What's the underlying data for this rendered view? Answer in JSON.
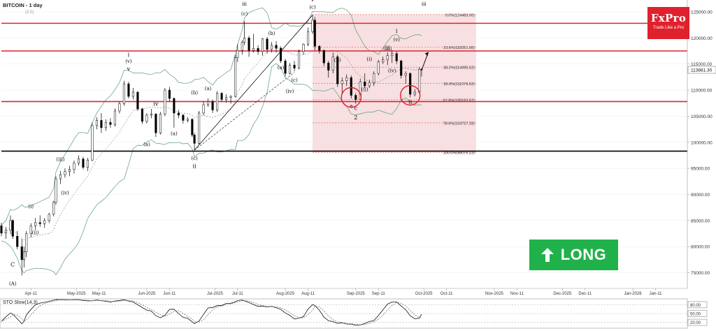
{
  "header": {
    "title": "BITCOIN - 1 day",
    "subtitle": "(2,0)"
  },
  "brand": {
    "name": "FxPro",
    "tagline": "Trade Like a Pro"
  },
  "signal": {
    "label": "LONG",
    "arrow_icon": "arrow-up-icon",
    "color": "#21b14b"
  },
  "colors": {
    "resistance": "#e0212d",
    "support": "#000000",
    "fib_zone": "#f6d4d7",
    "bollinger": "#5a9a78",
    "candle_up": "#ffffff",
    "candle_down": "#000000"
  },
  "chart_data": {
    "type": "candlestick",
    "title": "BITCOIN - 1 day",
    "ylim": [
      72000,
      127000
    ],
    "xlim": [
      "2025-03-29",
      "2026-01-25"
    ],
    "y_ticks": [
      "125000.00",
      "120000.00",
      "115000.00",
      "110000.00",
      "105000.00",
      "100000.00",
      "95000.00",
      "90000.00",
      "85000.00",
      "80000.00",
      "75000.00"
    ],
    "current_price": "113881.30",
    "x_ticks": [
      {
        "label": "Apr-11",
        "date": "2025-04-11"
      },
      {
        "label": "May-2025",
        "date": "2025-05-01"
      },
      {
        "label": "May-11",
        "date": "2025-05-11"
      },
      {
        "label": "Jun-2025",
        "date": "2025-06-01"
      },
      {
        "label": "Jun-11",
        "date": "2025-06-11"
      },
      {
        "label": "Jul-2025",
        "date": "2025-07-01"
      },
      {
        "label": "Jul-11",
        "date": "2025-07-11"
      },
      {
        "label": "Aug-2025",
        "date": "2025-08-01"
      },
      {
        "label": "Aug-11",
        "date": "2025-08-11"
      },
      {
        "label": "Sep-2025",
        "date": "2025-09-01"
      },
      {
        "label": "Sep-11",
        "date": "2025-09-11"
      },
      {
        "label": "Oct-2025",
        "date": "2025-10-01"
      },
      {
        "label": "Oct-11",
        "date": "2025-10-11"
      },
      {
        "label": "Nov-2025",
        "date": "2025-11-01"
      },
      {
        "label": "Nov-11",
        "date": "2025-11-11"
      },
      {
        "label": "Dec-2025",
        "date": "2025-12-01"
      },
      {
        "label": "Dec-11",
        "date": "2025-12-11"
      },
      {
        "label": "Jan-2026",
        "date": "2026-01-01"
      },
      {
        "label": "Jan-11",
        "date": "2026-01-11"
      }
    ],
    "resistance_levels": [
      122800,
      117500,
      107800
    ],
    "support_level": 98300,
    "fibonacci": {
      "start": "2025-08-13",
      "end": "2025-10-24",
      "levels": [
        {
          "label": "0.0%(124483.00)",
          "price": 124483
        },
        {
          "label": "23.6%(118251.00)",
          "price": 118251
        },
        {
          "label": "38.2%(114395.62)",
          "price": 114395.62
        },
        {
          "label": "50.0%(111279.62)",
          "price": 111279.62
        },
        {
          "label": "61.8%(108163.62)",
          "price": 108163.62
        },
        {
          "label": "78.6%(103727.28)",
          "price": 103727.28
        },
        {
          "label": "100.0%(98076.23)",
          "price": 98076.23
        }
      ]
    },
    "candles": [
      [
        "2025-03-29",
        84000,
        84600,
        82000,
        82600
      ],
      [
        "2025-03-31",
        82600,
        83800,
        81500,
        83200
      ],
      [
        "2025-04-02",
        83200,
        86000,
        82400,
        85000
      ],
      [
        "2025-04-03",
        85000,
        85300,
        81500,
        82000
      ],
      [
        "2025-04-05",
        82000,
        83000,
        79500,
        80000
      ],
      [
        "2025-04-07",
        80000,
        81500,
        74500,
        77500
      ],
      [
        "2025-04-08",
        77500,
        80000,
        76000,
        79000
      ],
      [
        "2025-04-09",
        79000,
        83000,
        78000,
        82500
      ],
      [
        "2025-04-11",
        82500,
        84500,
        81800,
        84000
      ],
      [
        "2025-04-13",
        84000,
        85500,
        83200,
        84600
      ],
      [
        "2025-04-15",
        84600,
        86000,
        83800,
        84400
      ],
      [
        "2025-04-17",
        84400,
        85500,
        83600,
        85000
      ],
      [
        "2025-04-19",
        85000,
        86500,
        84500,
        86200
      ],
      [
        "2025-04-21",
        86200,
        88800,
        85800,
        88500
      ],
      [
        "2025-04-22",
        88500,
        93500,
        88000,
        93000
      ],
      [
        "2025-04-24",
        93000,
        94500,
        92000,
        93800
      ],
      [
        "2025-04-26",
        93800,
        95000,
        93200,
        94400
      ],
      [
        "2025-04-28",
        94400,
        95500,
        93500,
        94800
      ],
      [
        "2025-04-30",
        94800,
        96500,
        94000,
        96000
      ],
      [
        "2025-05-02",
        96000,
        97500,
        95500,
        96800
      ],
      [
        "2025-05-04",
        96800,
        97200,
        94800,
        95200
      ],
      [
        "2025-05-06",
        95200,
        97000,
        94500,
        96600
      ],
      [
        "2025-05-08",
        96600,
        103800,
        96400,
        103200
      ],
      [
        "2025-05-10",
        103200,
        104800,
        102500,
        104200
      ],
      [
        "2025-05-12",
        104200,
        105600,
        101800,
        102800
      ],
      [
        "2025-05-14",
        102800,
        104400,
        102200,
        103800
      ],
      [
        "2025-05-16",
        103800,
        104600,
        102800,
        103400
      ],
      [
        "2025-05-18",
        103400,
        106500,
        103000,
        106000
      ],
      [
        "2025-05-20",
        106000,
        107800,
        105500,
        107400
      ],
      [
        "2025-05-22",
        107400,
        111800,
        107000,
        111200
      ],
      [
        "2025-05-24",
        111200,
        111600,
        108400,
        108800
      ],
      [
        "2025-05-26",
        108800,
        110400,
        108200,
        109600
      ],
      [
        "2025-05-28",
        109600,
        109800,
        106000,
        106400
      ],
      [
        "2025-05-30",
        106400,
        106600,
        103500,
        104000
      ],
      [
        "2025-06-01",
        104000,
        105600,
        103600,
        105200
      ],
      [
        "2025-06-03",
        105200,
        106400,
        104600,
        105400
      ],
      [
        "2025-06-05",
        105400,
        105600,
        101000,
        101800
      ],
      [
        "2025-06-07",
        101800,
        105800,
        101500,
        105400
      ],
      [
        "2025-06-09",
        105400,
        110400,
        105000,
        110000
      ],
      [
        "2025-06-11",
        110000,
        110600,
        107800,
        108400
      ],
      [
        "2025-06-13",
        108400,
        108600,
        102800,
        105600
      ],
      [
        "2025-06-15",
        105600,
        106200,
        104600,
        105200
      ],
      [
        "2025-06-17",
        105200,
        105400,
        103600,
        104200
      ],
      [
        "2025-06-19",
        104200,
        104800,
        103800,
        104400
      ],
      [
        "2025-06-21",
        104400,
        104600,
        101000,
        101400
      ],
      [
        "2025-06-22",
        101400,
        101800,
        98500,
        99800
      ],
      [
        "2025-06-24",
        99800,
        106000,
        99600,
        105600
      ],
      [
        "2025-06-26",
        105600,
        107800,
        105200,
        107200
      ],
      [
        "2025-06-28",
        107200,
        108400,
        106800,
        107800
      ],
      [
        "2025-06-30",
        107800,
        108200,
        105600,
        106200
      ],
      [
        "2025-07-02",
        106200,
        109800,
        105800,
        109400
      ],
      [
        "2025-07-04",
        109400,
        109600,
        107800,
        108200
      ],
      [
        "2025-07-06",
        108200,
        109200,
        107600,
        108600
      ],
      [
        "2025-07-08",
        108600,
        109000,
        107400,
        108800
      ],
      [
        "2025-07-10",
        108800,
        116800,
        108600,
        116200
      ],
      [
        "2025-07-11",
        116200,
        118800,
        115400,
        117600
      ],
      [
        "2025-07-13",
        117600,
        119600,
        116800,
        119200
      ],
      [
        "2025-07-14",
        119200,
        123200,
        118600,
        120000
      ],
      [
        "2025-07-16",
        120000,
        120400,
        116400,
        117600
      ],
      [
        "2025-07-18",
        117600,
        120800,
        117200,
        118000
      ],
      [
        "2025-07-20",
        118000,
        118600,
        116800,
        117400
      ],
      [
        "2025-07-22",
        117400,
        120000,
        116600,
        119800
      ],
      [
        "2025-07-24",
        119800,
        120200,
        117000,
        117800
      ],
      [
        "2025-07-26",
        117800,
        119200,
        117200,
        118600
      ],
      [
        "2025-07-28",
        118600,
        119400,
        117200,
        118000
      ],
      [
        "2025-07-30",
        118000,
        118400,
        115200,
        115600
      ],
      [
        "2025-08-01",
        115600,
        116000,
        112600,
        113200
      ],
      [
        "2025-08-03",
        113200,
        115200,
        113000,
        114800
      ],
      [
        "2025-08-05",
        114800,
        115600,
        113600,
        114200
      ],
      [
        "2025-08-07",
        114200,
        117800,
        114000,
        117400
      ],
      [
        "2025-08-09",
        117400,
        119000,
        116800,
        118800
      ],
      [
        "2025-08-11",
        118800,
        122000,
        118400,
        121200
      ],
      [
        "2025-08-13",
        121200,
        124400,
        120800,
        123400
      ],
      [
        "2025-08-14",
        123400,
        124000,
        117600,
        118400
      ],
      [
        "2025-08-16",
        118400,
        118600,
        117000,
        117600
      ],
      [
        "2025-08-18",
        117600,
        117800,
        114600,
        115200
      ],
      [
        "2025-08-20",
        115200,
        115600,
        112400,
        113800
      ],
      [
        "2025-08-22",
        113800,
        117200,
        113200,
        116400
      ],
      [
        "2025-08-24",
        116400,
        116800,
        110600,
        111200
      ],
      [
        "2025-08-26",
        111200,
        112400,
        109200,
        111800
      ],
      [
        "2025-08-28",
        111800,
        113000,
        110800,
        112400
      ],
      [
        "2025-08-30",
        112400,
        112800,
        108400,
        109000
      ],
      [
        "2025-09-01",
        109000,
        109400,
        107400,
        108200
      ],
      [
        "2025-09-03",
        108200,
        112200,
        107800,
        111600
      ],
      [
        "2025-09-05",
        111600,
        113200,
        110400,
        110800
      ],
      [
        "2025-09-07",
        110800,
        112000,
        110400,
        111400
      ],
      [
        "2025-09-09",
        111400,
        113600,
        110800,
        113200
      ],
      [
        "2025-09-11",
        113200,
        115800,
        112800,
        115400
      ],
      [
        "2025-09-13",
        115400,
        116400,
        115000,
        115800
      ],
      [
        "2025-09-15",
        115800,
        117200,
        114800,
        116600
      ],
      [
        "2025-09-17",
        116600,
        117600,
        115200,
        117000
      ],
      [
        "2025-09-19",
        117000,
        117400,
        115000,
        115600
      ],
      [
        "2025-09-21",
        115600,
        115800,
        112200,
        112800
      ],
      [
        "2025-09-23",
        112800,
        113600,
        111200,
        113200
      ],
      [
        "2025-09-25",
        113200,
        113400,
        108600,
        109200
      ],
      [
        "2025-09-27",
        109200,
        110200,
        108800,
        109600
      ],
      [
        "2025-09-29",
        109600,
        114400,
        109400,
        114000
      ],
      [
        "2025-09-30",
        114000,
        114200,
        112600,
        113881
      ]
    ],
    "wave_labels": [
      {
        "text": "C",
        "date": "2025-04-03",
        "price": 76200
      },
      {
        "text": "(A)",
        "date": "2025-04-03",
        "price": 72600
      },
      {
        "text": "(c)",
        "date": "2025-06-22",
        "price": 96600
      },
      {
        "text": "ii",
        "date": "2025-06-22",
        "price": 95100
      },
      {
        "text": "(c)",
        "date": "2025-08-13",
        "price": 125600
      },
      {
        "text": "v",
        "date": "2025-08-13",
        "price": 127000
      },
      {
        "text": "iii",
        "date": "2025-07-14",
        "price": 126200
      },
      {
        "text": "(c)",
        "date": "2025-07-14",
        "price": 124300
      },
      {
        "text": "iii",
        "date": "2025-10-01",
        "price": 126200
      },
      {
        "text": "2",
        "date": "2025-09-01",
        "price": 104400
      },
      {
        "text": "(b)",
        "date": "2025-07-26",
        "price": 120600
      },
      {
        "text": "(b)",
        "date": "2025-06-22",
        "price": 109200
      },
      {
        "text": "(a)",
        "date": "2025-07-30",
        "price": 114000
      },
      {
        "text": "(a)",
        "date": "2025-06-13",
        "price": 101400
      },
      {
        "text": "(a)",
        "date": "2025-06-28",
        "price": 110000
      },
      {
        "text": "i",
        "date": "2025-05-24",
        "price": 116400
      },
      {
        "text": "(v)",
        "date": "2025-05-24",
        "price": 115200
      },
      {
        "text": "iii",
        "date": "2025-09-15",
        "price": 117800
      },
      {
        "text": "i",
        "date": "2025-09-19",
        "price": 121000
      },
      {
        "text": "(v)",
        "date": "2025-09-19",
        "price": 119400
      },
      {
        "text": "(iii)",
        "date": "2025-09-15",
        "price": 117600
      },
      {
        "text": "(iv)",
        "date": "2025-09-17",
        "price": 113400
      },
      {
        "text": "(i)",
        "date": "2025-09-07",
        "price": 115600
      },
      {
        "text": "(ii)",
        "date": "2025-09-05",
        "price": 109800
      },
      {
        "text": "(b)",
        "date": "2025-08-24",
        "price": 115400
      },
      {
        "text": "a",
        "date": "2025-08-30",
        "price": 106600
      },
      {
        "text": "c",
        "date": "2025-09-01",
        "price": 106200
      },
      {
        "text": "ii",
        "date": "2025-09-25",
        "price": 107400
      },
      {
        "text": "(iii)",
        "date": "2025-04-24",
        "price": 96400
      },
      {
        "text": "(iv)",
        "date": "2025-04-26",
        "price": 90000
      },
      {
        "text": "(ii)",
        "date": "2025-04-13",
        "price": 82400
      },
      {
        "text": "(i)",
        "date": "2025-04-11",
        "price": 87400
      },
      {
        "text": "(a)",
        "date": "2025-06-01",
        "price": 99300
      },
      {
        "text": "v",
        "date": "2025-05-24",
        "price": 113700
      },
      {
        "text": "iv",
        "date": "2025-06-05",
        "price": 107000
      },
      {
        "text": "(c)",
        "date": "2025-08-05",
        "price": 111600
      },
      {
        "text": "(iv)",
        "date": "2025-08-03",
        "price": 109500
      }
    ],
    "annotation_circles": [
      {
        "date": "2025-08-30",
        "price": 108600
      },
      {
        "date": "2025-09-25",
        "price": 109000
      }
    ],
    "forecast_arrow": {
      "from": {
        "date": "2025-09-30",
        "price": 113800
      },
      "to": {
        "date": "2025-10-03",
        "price": 117300
      }
    }
  },
  "stochastic": {
    "title": "STO Slow(14,3)",
    "y_ticks": [
      "80.00",
      "50.00",
      "20.00"
    ],
    "ylim": [
      0,
      100
    ]
  }
}
